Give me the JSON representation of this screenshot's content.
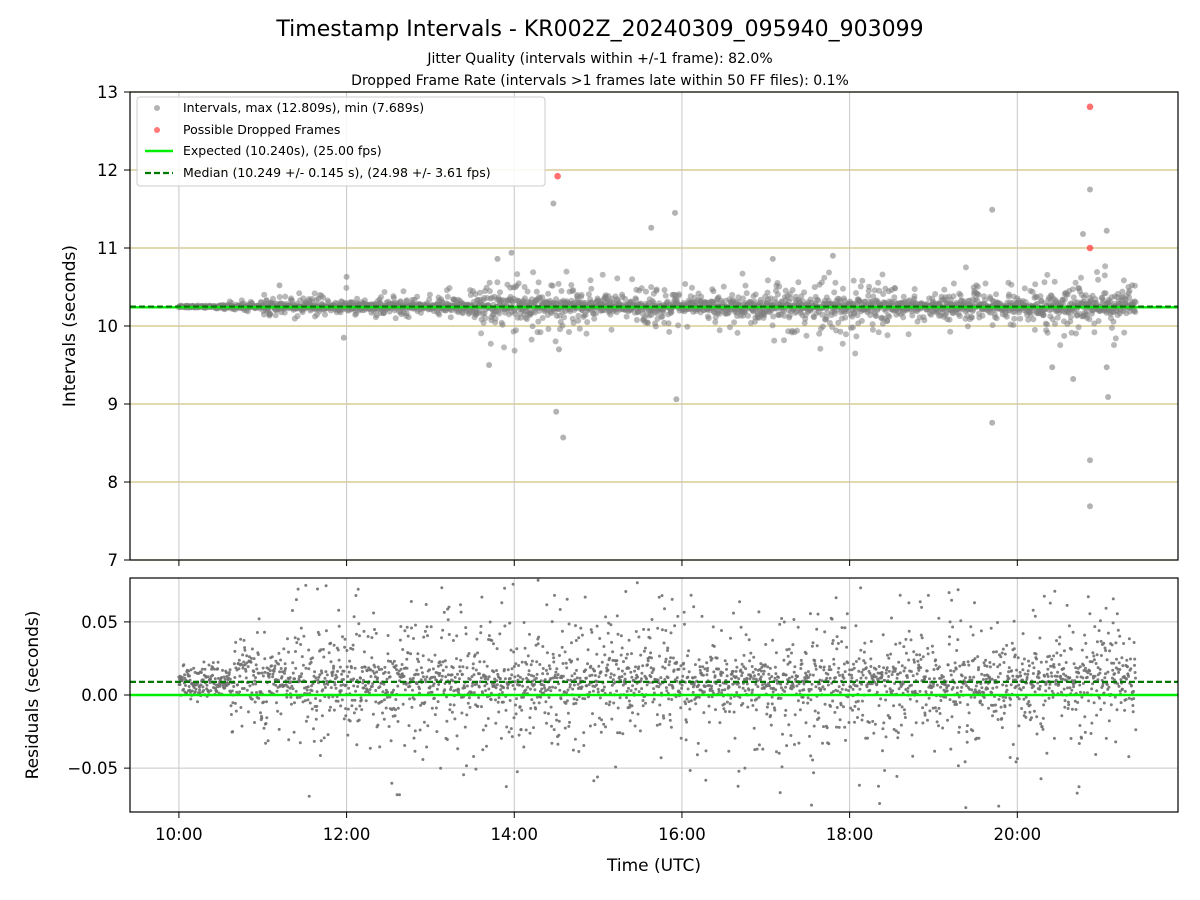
{
  "colors": {
    "interval_points": "#808080",
    "dropped_points": "#ff4040",
    "expected_line": "#00ee00",
    "median_line": "#007700",
    "grid_top": "#d2c27e",
    "grid_bottom": "#c8c8c8"
  },
  "chart_data": [
    {
      "type": "scatter",
      "title": "Timestamp Intervals - KR002Z_20240309_095940_903099",
      "subtitle_lines": [
        "Jitter Quality (intervals within +/-1 frame): 82.0%",
        "Dropped Frame Rate (intervals >1 frames late within 50 FF files): 0.1%"
      ],
      "xlabel": "",
      "ylabel": "Intervals (seconds)",
      "xlim": [
        "09:25",
        "21:55"
      ],
      "ylim": [
        7,
        13
      ],
      "grid": true,
      "legend_position": "top-left",
      "y_ticks": [
        "7",
        "8",
        "9",
        "10",
        "11",
        "12",
        "13"
      ],
      "x_ticks": [
        "10:00",
        "12:00",
        "14:00",
        "16:00",
        "18:00",
        "20:00"
      ],
      "expected_value": 10.24,
      "median_value": 10.249,
      "series": [
        {
          "name": "Intervals, max (12.809s), min (7.689s)",
          "approx_count": 2900,
          "outliers": [
            {
              "x": "11:12",
              "y": 10.52
            },
            {
              "x": "11:58",
              "y": 9.85
            },
            {
              "x": "12:00",
              "y": 10.63
            },
            {
              "x": "13:42",
              "y": 9.5
            },
            {
              "x": "13:48",
              "y": 10.86
            },
            {
              "x": "13:58",
              "y": 10.94
            },
            {
              "x": "14:28",
              "y": 11.57
            },
            {
              "x": "14:30",
              "y": 8.9
            },
            {
              "x": "14:35",
              "y": 8.57
            },
            {
              "x": "14:32",
              "y": 9.7
            },
            {
              "x": "15:38",
              "y": 11.26
            },
            {
              "x": "15:55",
              "y": 11.45
            },
            {
              "x": "15:56",
              "y": 9.06
            },
            {
              "x": "17:05",
              "y": 10.86
            },
            {
              "x": "17:48",
              "y": 10.9
            },
            {
              "x": "19:42",
              "y": 11.49
            },
            {
              "x": "19:42",
              "y": 8.76
            },
            {
              "x": "20:25",
              "y": 9.47
            },
            {
              "x": "20:40",
              "y": 9.32
            },
            {
              "x": "20:47",
              "y": 11.18
            },
            {
              "x": "20:52",
              "y": 11.75
            },
            {
              "x": "20:52",
              "y": 8.28
            },
            {
              "x": "20:52",
              "y": 7.69
            },
            {
              "x": "21:04",
              "y": 11.22
            },
            {
              "x": "21:05",
              "y": 9.09
            },
            {
              "x": "21:04",
              "y": 9.47
            }
          ]
        },
        {
          "name": "Possible Dropped Frames",
          "points": [
            {
              "x": "14:31",
              "y": 11.92
            },
            {
              "x": "20:52",
              "y": 12.81
            },
            {
              "x": "20:52",
              "y": 11.0
            }
          ]
        },
        {
          "name": "Expected (10.240s), (25.00 fps)",
          "value": 10.24
        },
        {
          "name": "Median (10.249 +/- 0.145 s), (24.98 +/- 3.61 fps)",
          "value": 10.249
        }
      ]
    },
    {
      "type": "scatter",
      "title": "",
      "xlabel": "Time (UTC)",
      "ylabel": "Residuals (seconds)",
      "xlim": [
        "09:25",
        "21:55"
      ],
      "ylim": [
        -0.08,
        0.08
      ],
      "grid": true,
      "y_ticks": [
        "−0.05",
        "0.00",
        "0.05"
      ],
      "x_ticks": [
        "10:00",
        "12:00",
        "14:00",
        "16:00",
        "18:00",
        "20:00"
      ],
      "expected_value": 0.0,
      "median_value": 0.009,
      "series": [
        {
          "name": "Residuals",
          "approx_count": 2900,
          "spread_sd": 0.02
        }
      ]
    }
  ]
}
